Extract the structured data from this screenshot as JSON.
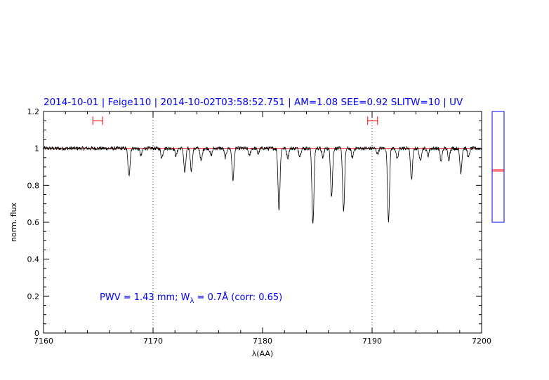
{
  "header": {
    "title": "2014-10-01 | Feige110 | 2014-10-02T03:58:52.751 | AM=1.08 SEE=0.92 SLITW=10 | UV"
  },
  "annotation": {
    "pwv_prefix": "PWV = 1.43 mm; W",
    "w_subscript": "λ",
    "pwv_suffix": " = 0.7Å (corr: 0.65)"
  },
  "chart_data": {
    "type": "line",
    "title": "2014-10-01 | Feige110 | 2014-10-02T03:58:52.751 | AM=1.08 SEE=0.92 SLITW=10 | UV",
    "xlabel": "λ(AA)",
    "ylabel": "norm. flux",
    "xlim": [
      7160,
      7200
    ],
    "ylim": [
      0,
      1.2
    ],
    "x_ticks": [
      7160,
      7170,
      7180,
      7190,
      7200
    ],
    "x_tick_labels": [
      "7160",
      "7170",
      "7180",
      "7190",
      "7200"
    ],
    "y_ticks": [
      0,
      0.2,
      0.4,
      0.6,
      0.8,
      1,
      1.2
    ],
    "y_tick_labels": [
      "0",
      "0.2",
      "0.4",
      "0.6",
      "0.8",
      "1",
      "1.2"
    ],
    "vertical_dotted_lines": [
      7170,
      7190
    ],
    "continuum_level": 1.0,
    "absorption_lines": [
      {
        "x": 7167.8,
        "depth": 0.15
      },
      {
        "x": 7168.9,
        "depth": 0.04
      },
      {
        "x": 7170.8,
        "depth": 0.05
      },
      {
        "x": 7172.1,
        "depth": 0.04
      },
      {
        "x": 7172.9,
        "depth": 0.13
      },
      {
        "x": 7173.5,
        "depth": 0.12
      },
      {
        "x": 7174.4,
        "depth": 0.07
      },
      {
        "x": 7175.3,
        "depth": 0.04
      },
      {
        "x": 7176.6,
        "depth": 0.05
      },
      {
        "x": 7177.3,
        "depth": 0.17
      },
      {
        "x": 7178.8,
        "depth": 0.04
      },
      {
        "x": 7179.6,
        "depth": 0.03
      },
      {
        "x": 7181.5,
        "depth": 0.33
      },
      {
        "x": 7182.3,
        "depth": 0.05
      },
      {
        "x": 7183.4,
        "depth": 0.04
      },
      {
        "x": 7184.6,
        "depth": 0.41
      },
      {
        "x": 7185.5,
        "depth": 0.05
      },
      {
        "x": 7186.3,
        "depth": 0.26
      },
      {
        "x": 7187.4,
        "depth": 0.34
      },
      {
        "x": 7188.2,
        "depth": 0.05
      },
      {
        "x": 7190.5,
        "depth": 0.03
      },
      {
        "x": 7191.5,
        "depth": 0.39
      },
      {
        "x": 7192.3,
        "depth": 0.06
      },
      {
        "x": 7193.6,
        "depth": 0.17
      },
      {
        "x": 7194.4,
        "depth": 0.07
      },
      {
        "x": 7195.1,
        "depth": 0.04
      },
      {
        "x": 7196.3,
        "depth": 0.07
      },
      {
        "x": 7197.0,
        "depth": 0.06
      },
      {
        "x": 7198.1,
        "depth": 0.13
      },
      {
        "x": 7198.8,
        "depth": 0.05
      }
    ],
    "noise_amplitude": 0.01,
    "error_bars": [
      {
        "x_left": 7164.5,
        "x_right": 7165.4,
        "y": 1.15
      },
      {
        "x_left": 7189.6,
        "x_right": 7190.5,
        "y": 1.15
      }
    ],
    "side_panel": {
      "range_top": 1.2,
      "range_bottom": 0.6,
      "marker_values": [
        0.885,
        0.877
      ]
    },
    "colors": {
      "spectrum": "#000000",
      "continuum": "#ff0000",
      "text": "#0000ff",
      "side_box": "#0000ff",
      "error_bar": "#ff0000"
    }
  }
}
